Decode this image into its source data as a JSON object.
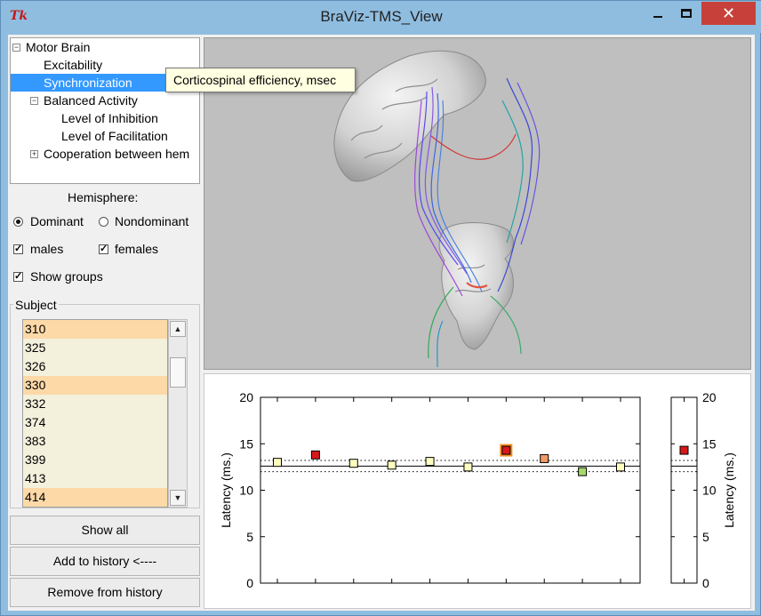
{
  "window": {
    "app_icon": "Tk",
    "title": "BraViz-TMS_View",
    "close_glyph": "✕"
  },
  "tree": {
    "items": [
      {
        "label": "Motor Brain",
        "toggle": "−"
      },
      {
        "label": "Excitability"
      },
      {
        "label": "Synchronization"
      },
      {
        "label": "Balanced Activity",
        "toggle": "−"
      },
      {
        "label": "Level of Inhibition"
      },
      {
        "label": "Level of Facilitation"
      },
      {
        "label": "Cooperation between hem",
        "toggle": "+"
      }
    ]
  },
  "tooltip": "Corticospinal efficiency, msec",
  "hemisphere": {
    "label": "Hemisphere:",
    "dominant": "Dominant",
    "nondominant": "Nondominant"
  },
  "filters": {
    "males": "males",
    "females": "females",
    "show_groups": "Show groups",
    "check_glyph": "✓"
  },
  "subject": {
    "label": "Subject",
    "items": [
      "310",
      "325",
      "326",
      "330",
      "332",
      "374",
      "383",
      "399",
      "413",
      "414"
    ],
    "highlight_color": "#fdd9a8",
    "list_bg": "#f3f0dc",
    "scroll_up": "▲",
    "scroll_down": "▼"
  },
  "buttons": {
    "show_all": "Show all",
    "add_history": "Add to history <----",
    "remove_history": "Remove from history"
  },
  "chart_data": {
    "type": "scatter",
    "ylabel": "Latency (ms.)",
    "ylim": [
      0,
      20
    ],
    "yticks": [
      "0",
      "5",
      "10",
      "15",
      "20"
    ],
    "mean_line": 12.6,
    "band": [
      12.0,
      13.2
    ],
    "points": [
      {
        "x": 1,
        "y": 13.0,
        "color": "#ffffc0"
      },
      {
        "x": 2,
        "y": 13.8,
        "color": "#d7191c"
      },
      {
        "x": 3,
        "y": 12.9,
        "color": "#ffffc0"
      },
      {
        "x": 4,
        "y": 12.7,
        "color": "#ffffc0"
      },
      {
        "x": 5,
        "y": 13.1,
        "color": "#ffffc0"
      },
      {
        "x": 6,
        "y": 12.5,
        "color": "#ffffc0"
      },
      {
        "x": 7,
        "y": 14.3,
        "color": "#d7191c",
        "selected": true
      },
      {
        "x": 8,
        "y": 13.4,
        "color": "#f29a66"
      },
      {
        "x": 9,
        "y": 12.0,
        "color": "#a6d96a"
      },
      {
        "x": 10,
        "y": 12.5,
        "color": "#ffffc0"
      }
    ],
    "side_point": {
      "y": 14.3,
      "color": "#d7191c"
    },
    "selection_color": "#f58a1f"
  }
}
